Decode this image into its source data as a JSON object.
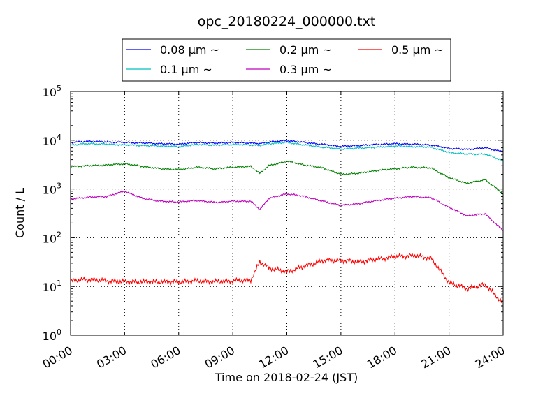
{
  "chart_data": {
    "type": "line",
    "title": "opc_20180224_000000.txt",
    "xlabel": "Time on 2018-02-24 (JST)",
    "ylabel": "Count / L",
    "yscale": "log",
    "ylim": [
      1,
      100000
    ],
    "xlim": [
      "00:00",
      "24:00"
    ],
    "x_tick_labels": [
      "00:00",
      "03:00",
      "06:00",
      "09:00",
      "12:00",
      "15:00",
      "18:00",
      "21:00",
      "24:00"
    ],
    "y_tick_labels": [
      {
        "base": "10",
        "exp": "0",
        "value": 1
      },
      {
        "base": "10",
        "exp": "1",
        "value": 10
      },
      {
        "base": "10",
        "exp": "2",
        "value": 100
      },
      {
        "base": "10",
        "exp": "3",
        "value": 1000
      },
      {
        "base": "10",
        "exp": "4",
        "value": 10000
      },
      {
        "base": "10",
        "exp": "5",
        "value": 100000
      }
    ],
    "grid": true,
    "legend_position": "top",
    "x": [
      "00:00",
      "01:00",
      "02:00",
      "03:00",
      "04:00",
      "05:00",
      "06:00",
      "07:00",
      "08:00",
      "09:00",
      "10:00",
      "10:30",
      "11:00",
      "12:00",
      "13:00",
      "14:00",
      "15:00",
      "16:00",
      "17:00",
      "18:00",
      "19:00",
      "20:00",
      "21:00",
      "22:00",
      "23:00",
      "24:00"
    ],
    "series": [
      {
        "name": "0.08 µm ~",
        "color": "#0000ff",
        "values": [
          9000,
          9500,
          9200,
          9000,
          8800,
          8500,
          8300,
          9000,
          8700,
          9000,
          8800,
          8500,
          9200,
          9800,
          9000,
          8200,
          7500,
          7800,
          8200,
          8500,
          8300,
          8000,
          6800,
          6500,
          7000,
          5800
        ]
      },
      {
        "name": "0.1 µm ~",
        "color": "#00bfbf",
        "values": [
          8000,
          8500,
          8300,
          8000,
          7800,
          7600,
          7400,
          8200,
          7900,
          8200,
          8000,
          7800,
          8500,
          9000,
          8000,
          7200,
          6600,
          6900,
          7200,
          7600,
          7400,
          7200,
          5600,
          5200,
          5200,
          3800
        ]
      },
      {
        "name": "0.2 µm ~",
        "color": "#008000",
        "values": [
          2900,
          3000,
          3100,
          3300,
          2900,
          2600,
          2500,
          2800,
          2600,
          2800,
          2900,
          2100,
          3000,
          3700,
          3100,
          2700,
          2000,
          2100,
          2400,
          2600,
          2800,
          2700,
          1700,
          1300,
          1550,
          800
        ]
      },
      {
        "name": "0.3 µm ~",
        "color": "#bf00bf",
        "values": [
          620,
          680,
          700,
          900,
          640,
          560,
          540,
          580,
          530,
          560,
          560,
          380,
          640,
          800,
          700,
          560,
          460,
          500,
          580,
          650,
          700,
          660,
          420,
          280,
          310,
          140
        ]
      },
      {
        "name": "0.5 µm ~",
        "color": "#ff0000",
        "values": [
          13,
          14,
          13,
          12.5,
          12.5,
          12.5,
          12.5,
          13,
          12.5,
          13,
          13.5,
          32,
          24,
          20,
          26,
          34,
          34,
          32,
          36,
          41,
          43,
          38,
          12,
          9,
          11,
          4.5
        ]
      }
    ]
  }
}
